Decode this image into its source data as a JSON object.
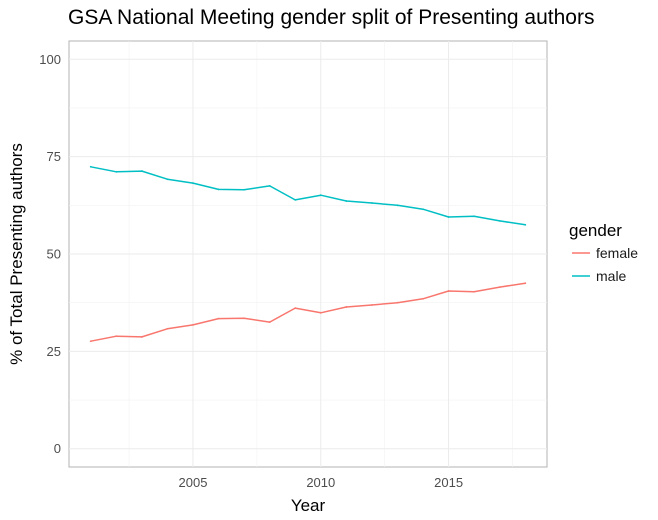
{
  "chart_data": {
    "type": "line",
    "title": "GSA National Meeting gender split of Presenting authors",
    "xlabel": "Year",
    "ylabel": "% of Total Presenting authors",
    "xlim": [
      2000.15,
      2018.85
    ],
    "ylim": [
      -4.7,
      104.7
    ],
    "x_ticks": [
      2005,
      2010,
      2015
    ],
    "y_ticks": [
      0,
      25,
      50,
      75,
      100
    ],
    "x_tick_labels": [
      "2005",
      "2010",
      "2015"
    ],
    "y_tick_labels": [
      "0",
      "25",
      "50",
      "75",
      "100"
    ],
    "grid": true,
    "legend": {
      "title": "gender",
      "position": "right"
    },
    "x": [
      2001,
      2002,
      2003,
      2004,
      2005,
      2006,
      2007,
      2008,
      2009,
      2010,
      2011,
      2012,
      2013,
      2014,
      2015,
      2016,
      2017,
      2018
    ],
    "series": [
      {
        "name": "female",
        "color": "#F8766D",
        "values": [
          27.6,
          28.9,
          28.7,
          30.8,
          31.8,
          33.4,
          33.5,
          32.5,
          36.1,
          34.9,
          36.4,
          36.9,
          37.5,
          38.5,
          40.5,
          40.3,
          41.5,
          42.5
        ]
      },
      {
        "name": "male",
        "color": "#00BFC4",
        "values": [
          72.4,
          71.1,
          71.3,
          69.2,
          68.2,
          66.6,
          66.5,
          67.5,
          63.9,
          65.1,
          63.6,
          63.1,
          62.5,
          61.5,
          59.5,
          59.7,
          58.5,
          57.5
        ]
      }
    ]
  }
}
